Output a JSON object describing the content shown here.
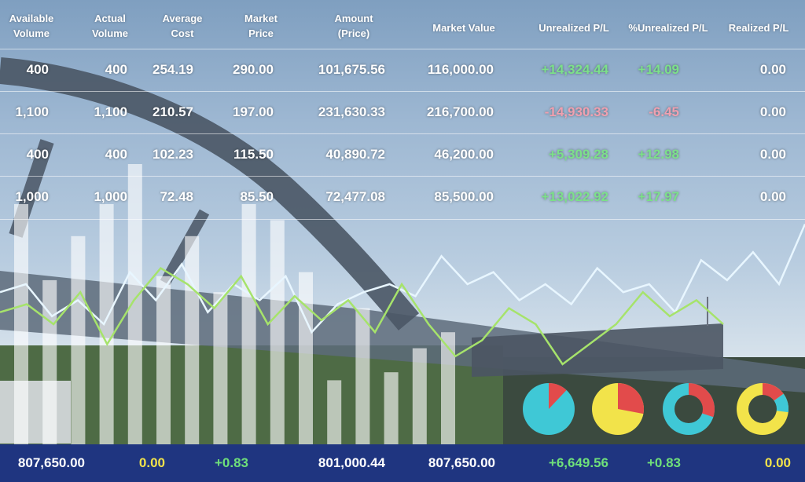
{
  "columns": [
    "Available\nVolume",
    "Actual\nVolume",
    "Average\nCost",
    "Market\nPrice",
    "Amount\n(Price)",
    "Market Value",
    "Unrealized P/L",
    "%Unrealized P/L",
    "Realized P/L"
  ],
  "rows": [
    [
      "400",
      "400",
      "254.19",
      "290.00",
      "101,675.56",
      "116,000.00",
      "+14,324.44",
      "+14.09",
      "0.00"
    ],
    [
      "1,100",
      "1,100",
      "210.57",
      "197.00",
      "231,630.33",
      "216,700.00",
      "-14,930.33",
      "-6.45",
      "0.00"
    ],
    [
      "400",
      "400",
      "102.23",
      "115.50",
      "40,890.72",
      "46,200.00",
      "+5,309.28",
      "+12.98",
      "0.00"
    ],
    [
      "1,000",
      "1,000",
      "72.48",
      "85.50",
      "72,477.08",
      "85,500.00",
      "+13,022.92",
      "+17.97",
      "0.00"
    ]
  ],
  "footer": [
    "807,650.00",
    "0.00",
    "+0.83",
    "801,000.44",
    "807,650.00",
    "+6,649.56",
    "+0.83",
    "0.00"
  ],
  "chart_data": {
    "type": "bar",
    "bars": [
      0.6,
      0.41,
      0.52,
      0.6,
      0.7,
      0.42,
      0.52,
      0.38,
      0.6,
      0.56,
      0.43,
      0.16,
      0.34,
      0.18,
      0.24,
      0.28
    ],
    "line_light": [
      0.38,
      0.4,
      0.32,
      0.36,
      0.3,
      0.43,
      0.36,
      0.45,
      0.33,
      0.4,
      0.36,
      0.42,
      0.28,
      0.35,
      0.38,
      0.4,
      0.37,
      0.47,
      0.4,
      0.43,
      0.36,
      0.4,
      0.35,
      0.44,
      0.38,
      0.4,
      0.33,
      0.46,
      0.41,
      0.48,
      0.4,
      0.55
    ],
    "line_green": [
      0.33,
      0.35,
      0.3,
      0.38,
      0.25,
      0.36,
      0.44,
      0.4,
      0.34,
      0.42,
      0.3,
      0.37,
      0.31,
      0.36,
      0.28,
      0.4,
      0.3,
      0.22,
      0.26,
      0.34,
      0.3,
      0.2,
      0.25,
      0.3,
      0.38,
      0.32,
      0.36,
      0.3
    ],
    "pies": [
      {
        "fraction": 0.12,
        "ring": false,
        "base": "#3fc8d6",
        "slice": "#e24b4b"
      },
      {
        "fraction": 0.28,
        "ring": false,
        "base": "#f2e34a",
        "slice": "#e24b4b"
      },
      {
        "fraction": 0.3,
        "ring": true,
        "base": "#3fc8d6",
        "slice": "#e24b4b"
      },
      {
        "fraction": 0.15,
        "ring": true,
        "base": "#f2e34a",
        "slice": "#e24b4b",
        "slice2": "#3fc8d6",
        "fraction2": 0.12
      }
    ]
  },
  "colors": {
    "footer_bg": "#1f3580",
    "positive": "#7ce08a",
    "negative": "#f0a0b0",
    "yellow": "#f2e34a"
  }
}
